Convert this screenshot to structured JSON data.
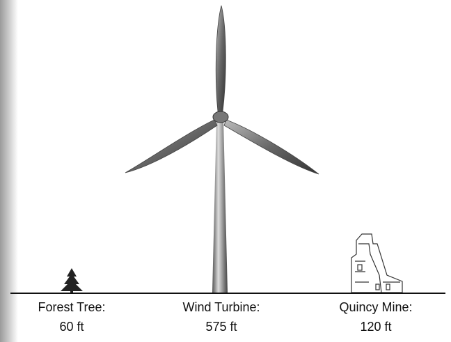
{
  "items": [
    {
      "name": "Forest Tree:",
      "height": "60 ft"
    },
    {
      "name": "Wind Turbine:",
      "height": "575 ft"
    },
    {
      "name": "Quincy Mine:",
      "height": "120 ft"
    }
  ]
}
